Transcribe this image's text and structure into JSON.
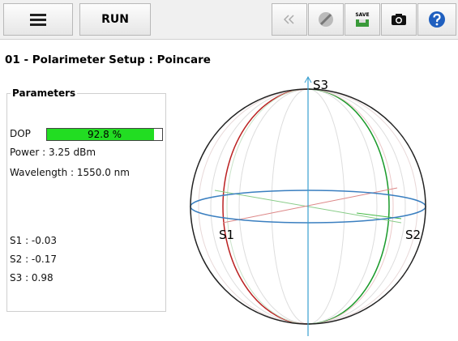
{
  "toolbar": {
    "run": "RUN",
    "save": "SAVE"
  },
  "title": "01 - Polarimeter Setup : Poincare",
  "parameters": {
    "heading": "Parameters",
    "dop": {
      "label": "DOP",
      "value": 92.8,
      "value_label": "92.8 %"
    },
    "power": "Power : 3.25 dBm",
    "wavelength": "Wavelength : 1550.0 nm",
    "s1": "S1 : -0.03",
    "s2": "S2 : -0.17",
    "s3": "S3 : 0.98"
  },
  "sphere": {
    "s1": "S1",
    "s2": "S2",
    "s3": "S3"
  }
}
